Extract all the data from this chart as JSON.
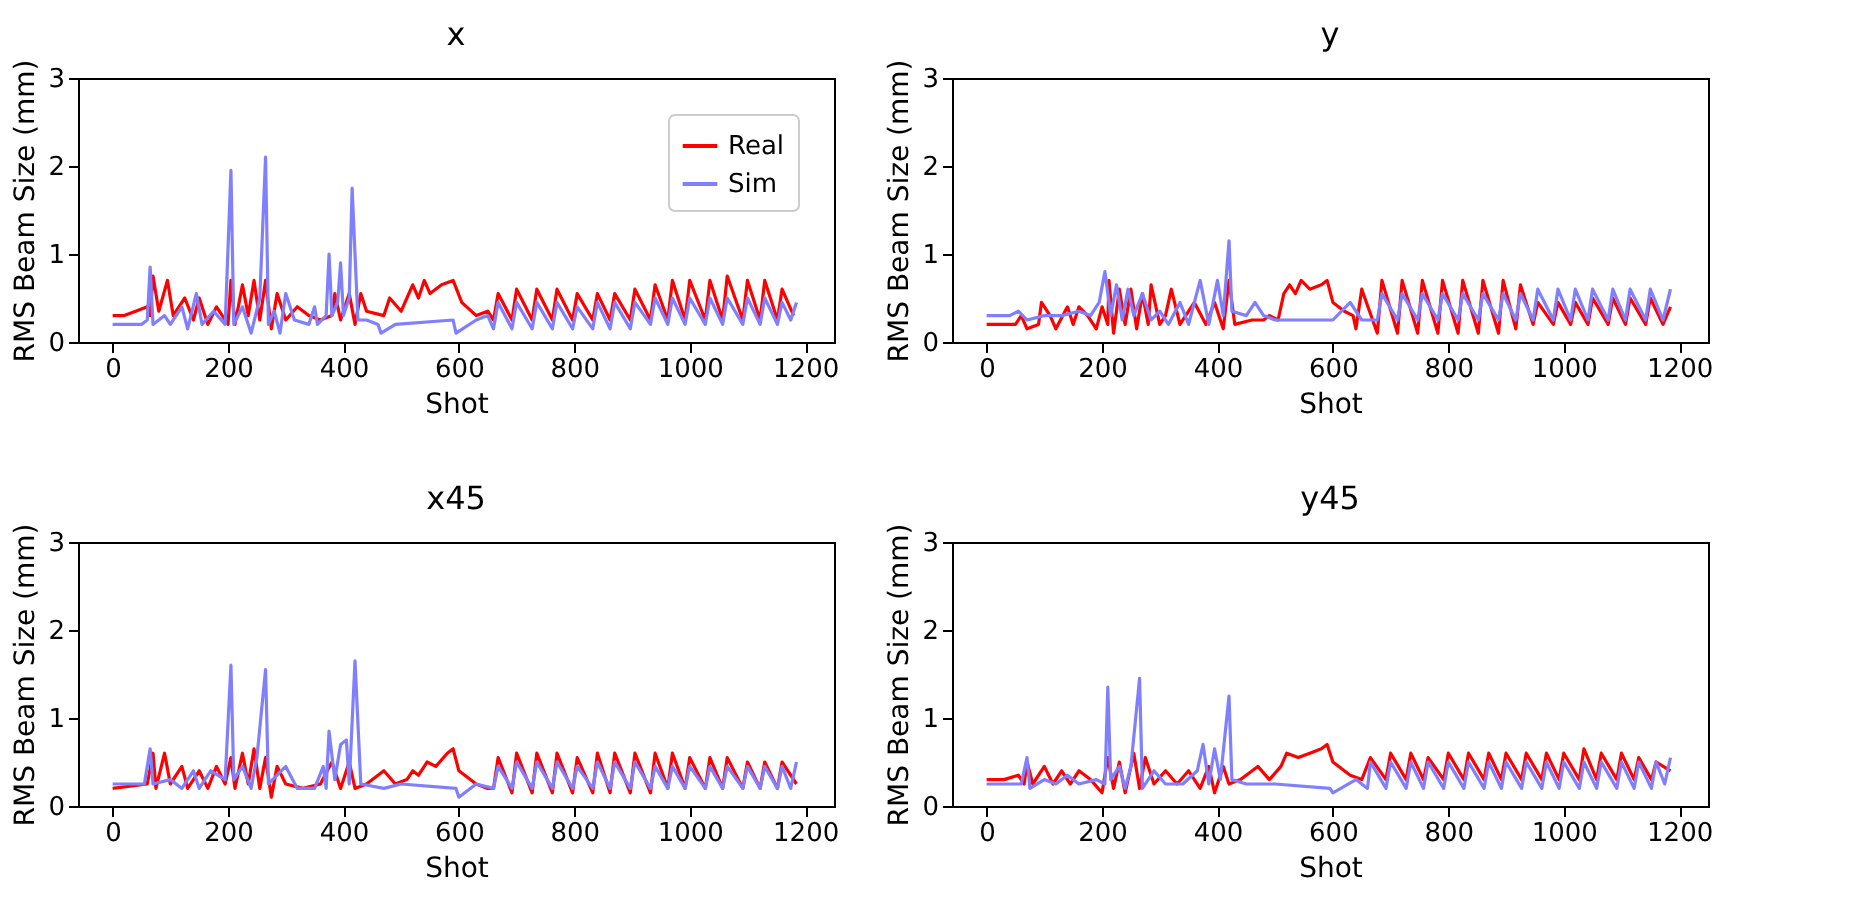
{
  "chart_data": [
    {
      "type": "line",
      "title": "x",
      "xlabel": "Shot",
      "ylabel": "RMS Beam Size (mm)",
      "xlim": [
        -60,
        1250
      ],
      "ylim": [
        0,
        3
      ],
      "xticks": [
        0,
        200,
        400,
        600,
        800,
        1000,
        1200
      ],
      "yticks": [
        0,
        1,
        2,
        3
      ],
      "grid": false,
      "legend": "top right",
      "series": [
        {
          "name": "Real",
          "color": "#ff0000",
          "x": [
            0,
            20,
            40,
            60,
            65,
            70,
            80,
            95,
            105,
            125,
            140,
            150,
            165,
            180,
            200,
            205,
            212,
            225,
            235,
            245,
            255,
            265,
            275,
            285,
            300,
            320,
            340,
            360,
            380,
            385,
            395,
            410,
            420,
            430,
            440,
            470,
            480,
            500,
            510,
            520,
            530,
            540,
            550,
            570,
            590,
            605,
            630,
            650,
            660,
            668,
            692,
            700,
            727,
            735,
            762,
            770,
            797,
            805,
            832,
            840,
            862,
            870,
            897,
            905,
            932,
            940,
            962,
            970,
            992,
            1000,
            1027,
            1035,
            1057,
            1065,
            1092,
            1100,
            1122,
            1130,
            1152,
            1160,
            1180
          ],
          "values": [
            0.3,
            0.3,
            0.35,
            0.4,
            0.3,
            0.75,
            0.35,
            0.7,
            0.3,
            0.5,
            0.25,
            0.5,
            0.2,
            0.4,
            0.2,
            0.7,
            0.2,
            0.65,
            0.3,
            0.7,
            0.25,
            0.7,
            0.15,
            0.55,
            0.25,
            0.4,
            0.3,
            0.25,
            0.3,
            0.55,
            0.25,
            0.55,
            0.2,
            0.55,
            0.35,
            0.3,
            0.5,
            0.35,
            0.5,
            0.65,
            0.5,
            0.7,
            0.55,
            0.65,
            0.7,
            0.45,
            0.3,
            0.35,
            0.25,
            0.55,
            0.25,
            0.6,
            0.25,
            0.6,
            0.25,
            0.6,
            0.25,
            0.55,
            0.25,
            0.55,
            0.25,
            0.55,
            0.25,
            0.6,
            0.25,
            0.65,
            0.25,
            0.7,
            0.25,
            0.7,
            0.25,
            0.7,
            0.25,
            0.75,
            0.25,
            0.7,
            0.25,
            0.7,
            0.25,
            0.6,
            0.3
          ]
        },
        {
          "name": "Sim",
          "color": "#8080ff",
          "x": [
            0,
            50,
            60,
            65,
            70,
            90,
            100,
            120,
            130,
            145,
            155,
            175,
            195,
            205,
            210,
            225,
            240,
            255,
            265,
            270,
            280,
            290,
            300,
            315,
            340,
            350,
            355,
            370,
            375,
            380,
            390,
            395,
            400,
            410,
            415,
            425,
            440,
            460,
            465,
            490,
            590,
            595,
            630,
            650,
            660,
            668,
            692,
            700,
            727,
            735,
            762,
            770,
            797,
            805,
            832,
            840,
            862,
            870,
            897,
            905,
            932,
            940,
            962,
            970,
            992,
            1000,
            1027,
            1035,
            1057,
            1065,
            1092,
            1100,
            1122,
            1130,
            1152,
            1160,
            1175,
            1185
          ],
          "values": [
            0.2,
            0.2,
            0.25,
            0.85,
            0.2,
            0.3,
            0.2,
            0.4,
            0.15,
            0.55,
            0.2,
            0.35,
            0.2,
            1.95,
            0.2,
            0.4,
            0.1,
            0.5,
            2.1,
            0.2,
            0.35,
            0.1,
            0.55,
            0.25,
            0.2,
            0.4,
            0.2,
            0.3,
            1.0,
            0.3,
            0.45,
            0.9,
            0.3,
            0.5,
            1.75,
            0.25,
            0.25,
            0.2,
            0.1,
            0.2,
            0.25,
            0.1,
            0.25,
            0.3,
            0.15,
            0.45,
            0.15,
            0.45,
            0.15,
            0.45,
            0.15,
            0.45,
            0.15,
            0.4,
            0.15,
            0.45,
            0.15,
            0.45,
            0.15,
            0.45,
            0.2,
            0.5,
            0.2,
            0.5,
            0.2,
            0.5,
            0.2,
            0.5,
            0.2,
            0.5,
            0.2,
            0.5,
            0.2,
            0.5,
            0.2,
            0.45,
            0.25,
            0.45
          ]
        }
      ]
    },
    {
      "type": "line",
      "title": "y",
      "xlabel": "Shot",
      "ylabel": "RMS Beam Size (mm)",
      "xlim": [
        -60,
        1250
      ],
      "ylim": [
        0,
        3
      ],
      "xticks": [
        0,
        200,
        400,
        600,
        800,
        1000,
        1200
      ],
      "yticks": [
        0,
        1,
        2,
        3
      ],
      "grid": false,
      "series": [
        {
          "color": "#ff0000",
          "x": [
            0,
            50,
            60,
            70,
            90,
            95,
            110,
            120,
            140,
            150,
            160,
            175,
            190,
            200,
            210,
            212,
            220,
            230,
            240,
            250,
            260,
            270,
            280,
            285,
            300,
            310,
            320,
            335,
            360,
            380,
            395,
            410,
            420,
            430,
            460,
            480,
            490,
            505,
            515,
            525,
            535,
            545,
            560,
            580,
            590,
            600,
            620,
            635,
            640,
            650,
            677,
            685,
            712,
            720,
            747,
            755,
            782,
            790,
            817,
            825,
            852,
            860,
            887,
            895,
            917,
            925,
            947,
            955,
            982,
            990,
            1012,
            1020,
            1042,
            1050,
            1077,
            1085,
            1107,
            1115,
            1142,
            1150,
            1172,
            1185
          ],
          "values": [
            0.2,
            0.2,
            0.3,
            0.15,
            0.2,
            0.45,
            0.3,
            0.15,
            0.4,
            0.2,
            0.4,
            0.3,
            0.15,
            0.4,
            0.2,
            0.7,
            0.1,
            0.6,
            0.2,
            0.6,
            0.15,
            0.55,
            0.2,
            0.65,
            0.2,
            0.3,
            0.6,
            0.2,
            0.45,
            0.2,
            0.45,
            0.15,
            0.7,
            0.2,
            0.25,
            0.25,
            0.3,
            0.25,
            0.55,
            0.65,
            0.55,
            0.7,
            0.6,
            0.65,
            0.7,
            0.45,
            0.35,
            0.3,
            0.15,
            0.6,
            0.1,
            0.7,
            0.1,
            0.7,
            0.1,
            0.7,
            0.1,
            0.7,
            0.1,
            0.7,
            0.1,
            0.7,
            0.1,
            0.7,
            0.15,
            0.65,
            0.2,
            0.45,
            0.2,
            0.45,
            0.2,
            0.45,
            0.2,
            0.5,
            0.2,
            0.5,
            0.2,
            0.5,
            0.2,
            0.5,
            0.2,
            0.4
          ]
        },
        {
          "color": "#8080ff",
          "x": [
            0,
            40,
            55,
            70,
            100,
            130,
            160,
            180,
            195,
            205,
            215,
            225,
            235,
            245,
            255,
            270,
            285,
            300,
            315,
            335,
            350,
            370,
            385,
            400,
            410,
            420,
            425,
            450,
            465,
            480,
            500,
            600,
            630,
            650,
            677,
            685,
            712,
            720,
            747,
            755,
            782,
            790,
            817,
            825,
            852,
            860,
            887,
            895,
            917,
            925,
            947,
            955,
            982,
            990,
            1012,
            1020,
            1042,
            1050,
            1077,
            1085,
            1107,
            1115,
            1142,
            1150,
            1172,
            1185
          ],
          "values": [
            0.3,
            0.3,
            0.35,
            0.25,
            0.3,
            0.3,
            0.35,
            0.3,
            0.45,
            0.8,
            0.3,
            0.65,
            0.25,
            0.6,
            0.3,
            0.55,
            0.25,
            0.35,
            0.2,
            0.45,
            0.2,
            0.7,
            0.2,
            0.7,
            0.3,
            1.15,
            0.35,
            0.3,
            0.45,
            0.3,
            0.25,
            0.25,
            0.45,
            0.25,
            0.25,
            0.55,
            0.25,
            0.55,
            0.25,
            0.55,
            0.25,
            0.55,
            0.25,
            0.55,
            0.25,
            0.55,
            0.25,
            0.55,
            0.25,
            0.55,
            0.25,
            0.6,
            0.25,
            0.6,
            0.25,
            0.6,
            0.25,
            0.6,
            0.25,
            0.6,
            0.25,
            0.6,
            0.25,
            0.6,
            0.25,
            0.6
          ]
        }
      ]
    },
    {
      "type": "line",
      "title": "x45",
      "xlabel": "Shot",
      "ylabel": "RMS Beam Size (mm)",
      "xlim": [
        -60,
        1250
      ],
      "ylim": [
        0,
        3
      ],
      "xticks": [
        0,
        200,
        400,
        600,
        800,
        1000,
        1200
      ],
      "yticks": [
        0,
        1,
        2,
        3
      ],
      "grid": false,
      "series": [
        {
          "color": "#ff0000",
          "x": [
            0,
            60,
            70,
            75,
            90,
            100,
            120,
            130,
            150,
            165,
            180,
            195,
            205,
            212,
            225,
            235,
            245,
            255,
            265,
            275,
            285,
            300,
            330,
            360,
            380,
            395,
            410,
            420,
            440,
            470,
            490,
            510,
            520,
            530,
            545,
            560,
            580,
            590,
            600,
            630,
            650,
            660,
            668,
            692,
            700,
            727,
            735,
            762,
            770,
            797,
            805,
            832,
            840,
            862,
            870,
            897,
            905,
            932,
            940,
            962,
            970,
            992,
            1000,
            1027,
            1035,
            1057,
            1065,
            1092,
            1100,
            1122,
            1130,
            1152,
            1160,
            1185
          ],
          "values": [
            0.2,
            0.25,
            0.6,
            0.2,
            0.6,
            0.25,
            0.45,
            0.2,
            0.4,
            0.2,
            0.45,
            0.25,
            0.55,
            0.2,
            0.6,
            0.25,
            0.65,
            0.2,
            0.55,
            0.1,
            0.45,
            0.25,
            0.2,
            0.25,
            0.5,
            0.2,
            0.5,
            0.2,
            0.25,
            0.4,
            0.25,
            0.3,
            0.4,
            0.35,
            0.5,
            0.45,
            0.6,
            0.65,
            0.4,
            0.25,
            0.2,
            0.2,
            0.55,
            0.15,
            0.6,
            0.15,
            0.6,
            0.15,
            0.6,
            0.15,
            0.55,
            0.15,
            0.6,
            0.15,
            0.6,
            0.15,
            0.6,
            0.15,
            0.6,
            0.2,
            0.6,
            0.2,
            0.55,
            0.2,
            0.55,
            0.2,
            0.55,
            0.2,
            0.5,
            0.2,
            0.5,
            0.2,
            0.5,
            0.25
          ]
        },
        {
          "color": "#8080ff",
          "x": [
            0,
            55,
            65,
            70,
            100,
            120,
            140,
            150,
            170,
            195,
            205,
            210,
            225,
            240,
            250,
            265,
            270,
            285,
            300,
            320,
            350,
            365,
            370,
            375,
            385,
            395,
            405,
            410,
            420,
            430,
            470,
            500,
            595,
            600,
            630,
            660,
            668,
            692,
            700,
            727,
            735,
            762,
            770,
            797,
            805,
            832,
            840,
            862,
            870,
            897,
            905,
            932,
            940,
            962,
            970,
            992,
            1000,
            1027,
            1035,
            1057,
            1065,
            1092,
            1100,
            1122,
            1130,
            1152,
            1160,
            1175,
            1185
          ],
          "values": [
            0.25,
            0.25,
            0.65,
            0.25,
            0.3,
            0.2,
            0.4,
            0.2,
            0.4,
            0.3,
            1.6,
            0.3,
            0.45,
            0.2,
            0.55,
            1.55,
            0.25,
            0.35,
            0.45,
            0.2,
            0.2,
            0.45,
            0.2,
            0.85,
            0.3,
            0.7,
            0.75,
            0.25,
            1.65,
            0.25,
            0.2,
            0.25,
            0.2,
            0.1,
            0.25,
            0.2,
            0.45,
            0.2,
            0.5,
            0.2,
            0.5,
            0.2,
            0.5,
            0.2,
            0.45,
            0.2,
            0.5,
            0.2,
            0.5,
            0.2,
            0.5,
            0.2,
            0.45,
            0.2,
            0.45,
            0.2,
            0.45,
            0.2,
            0.45,
            0.2,
            0.45,
            0.2,
            0.45,
            0.2,
            0.45,
            0.2,
            0.45,
            0.2,
            0.5
          ]
        }
      ]
    },
    {
      "type": "line",
      "title": "y45",
      "xlabel": "Shot",
      "ylabel": "RMS Beam Size (mm)",
      "xlim": [
        -60,
        1250
      ],
      "ylim": [
        0,
        3
      ],
      "xticks": [
        0,
        200,
        400,
        600,
        800,
        1000,
        1200
      ],
      "yticks": [
        0,
        1,
        2,
        3
      ],
      "grid": false,
      "series": [
        {
          "color": "#ff0000",
          "x": [
            0,
            30,
            55,
            65,
            70,
            80,
            100,
            115,
            130,
            145,
            160,
            180,
            200,
            210,
            220,
            230,
            240,
            255,
            265,
            275,
            290,
            310,
            330,
            350,
            370,
            385,
            395,
            410,
            420,
            440,
            470,
            490,
            510,
            520,
            540,
            560,
            580,
            590,
            600,
            630,
            650,
            665,
            692,
            700,
            727,
            735,
            757,
            765,
            792,
            800,
            827,
            835,
            862,
            870,
            892,
            900,
            927,
            935,
            962,
            970,
            992,
            1000,
            1027,
            1035,
            1057,
            1065,
            1092,
            1100,
            1122,
            1130,
            1152,
            1160,
            1185
          ],
          "values": [
            0.3,
            0.3,
            0.35,
            0.25,
            0.5,
            0.25,
            0.45,
            0.25,
            0.4,
            0.25,
            0.4,
            0.3,
            0.15,
            0.55,
            0.2,
            0.5,
            0.15,
            0.6,
            0.2,
            0.55,
            0.25,
            0.4,
            0.25,
            0.4,
            0.2,
            0.45,
            0.15,
            0.45,
            0.25,
            0.3,
            0.45,
            0.3,
            0.45,
            0.6,
            0.55,
            0.6,
            0.65,
            0.7,
            0.5,
            0.35,
            0.3,
            0.55,
            0.3,
            0.6,
            0.3,
            0.6,
            0.3,
            0.55,
            0.3,
            0.6,
            0.3,
            0.6,
            0.3,
            0.6,
            0.3,
            0.6,
            0.3,
            0.6,
            0.3,
            0.6,
            0.3,
            0.6,
            0.3,
            0.65,
            0.3,
            0.6,
            0.3,
            0.6,
            0.3,
            0.55,
            0.3,
            0.5,
            0.4
          ]
        },
        {
          "color": "#8080ff",
          "x": [
            0,
            60,
            70,
            75,
            100,
            120,
            140,
            160,
            190,
            205,
            210,
            215,
            230,
            240,
            250,
            265,
            270,
            290,
            310,
            340,
            365,
            375,
            385,
            395,
            405,
            420,
            425,
            450,
            500,
            595,
            600,
            640,
            660,
            665,
            692,
            700,
            727,
            735,
            757,
            765,
            792,
            800,
            827,
            835,
            862,
            870,
            892,
            900,
            927,
            935,
            962,
            970,
            992,
            1000,
            1027,
            1035,
            1057,
            1065,
            1092,
            1100,
            1122,
            1130,
            1152,
            1160,
            1175,
            1185
          ],
          "values": [
            0.25,
            0.25,
            0.55,
            0.2,
            0.3,
            0.25,
            0.35,
            0.25,
            0.3,
            0.25,
            1.35,
            0.3,
            0.45,
            0.2,
            0.45,
            1.45,
            0.2,
            0.4,
            0.25,
            0.25,
            0.4,
            0.7,
            0.25,
            0.65,
            0.3,
            1.25,
            0.3,
            0.25,
            0.25,
            0.2,
            0.15,
            0.3,
            0.2,
            0.5,
            0.2,
            0.5,
            0.2,
            0.5,
            0.2,
            0.5,
            0.2,
            0.5,
            0.2,
            0.5,
            0.2,
            0.5,
            0.2,
            0.5,
            0.2,
            0.5,
            0.2,
            0.5,
            0.2,
            0.5,
            0.2,
            0.5,
            0.2,
            0.5,
            0.2,
            0.5,
            0.2,
            0.5,
            0.2,
            0.5,
            0.25,
            0.55
          ]
        }
      ]
    }
  ]
}
